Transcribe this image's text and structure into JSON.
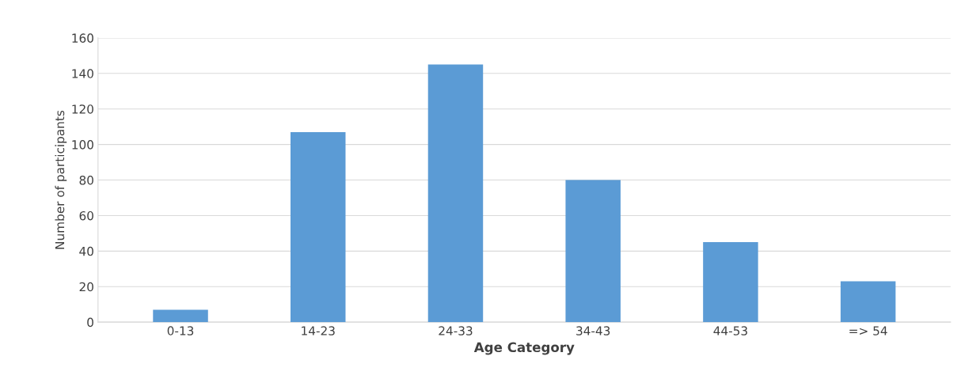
{
  "chart_data": {
    "type": "bar",
    "xlabel": "Age Category",
    "ylabel": "Number of participants",
    "categories": [
      "0-13",
      "14-23",
      "24-33",
      "34-43",
      "44-53",
      "=> 54"
    ],
    "values": [
      7,
      107,
      145,
      80,
      45,
      23
    ],
    "color": "#5b9bd5",
    "ylim": [
      0,
      160
    ],
    "yticks": [
      0,
      20,
      40,
      60,
      80,
      100,
      120,
      140,
      160
    ],
    "grid": "y"
  }
}
